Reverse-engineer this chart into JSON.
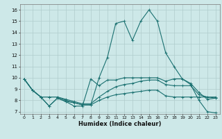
{
  "xlabel": "Humidex (Indice chaleur)",
  "xlim": [
    -0.5,
    23.5
  ],
  "ylim": [
    6.8,
    16.5
  ],
  "yticks": [
    7,
    8,
    9,
    10,
    11,
    12,
    13,
    14,
    15,
    16
  ],
  "xticks": [
    0,
    1,
    2,
    3,
    4,
    5,
    6,
    7,
    8,
    9,
    10,
    11,
    12,
    13,
    14,
    15,
    16,
    17,
    18,
    19,
    20,
    21,
    22,
    23
  ],
  "bg_color": "#cde8e8",
  "grid_color": "#b0cccc",
  "line_color": "#1a7070",
  "line1_y": [
    9.9,
    8.9,
    8.3,
    8.3,
    8.3,
    8.0,
    7.8,
    7.6,
    7.6,
    8.0,
    8.3,
    8.5,
    8.6,
    8.7,
    8.8,
    8.9,
    8.9,
    8.4,
    8.3,
    8.3,
    8.3,
    8.3,
    8.3,
    8.2
  ],
  "line2_y": [
    9.9,
    8.9,
    8.3,
    8.3,
    8.3,
    8.1,
    7.9,
    7.7,
    7.7,
    8.3,
    8.8,
    9.2,
    9.4,
    9.5,
    9.7,
    9.8,
    9.8,
    9.4,
    9.3,
    9.3,
    9.3,
    8.5,
    8.3,
    8.3
  ],
  "line3_y": [
    9.9,
    8.9,
    8.3,
    7.5,
    8.2,
    7.9,
    7.5,
    7.5,
    9.9,
    9.3,
    9.8,
    9.8,
    10.0,
    10.0,
    10.0,
    10.0,
    10.0,
    9.7,
    9.9,
    9.9,
    9.5,
    8.7,
    8.1,
    8.2
  ],
  "line4_y": [
    9.9,
    8.9,
    8.3,
    7.5,
    8.2,
    7.9,
    7.8,
    7.6,
    7.6,
    10.0,
    11.8,
    14.8,
    15.0,
    13.3,
    15.0,
    16.0,
    15.0,
    12.2,
    11.0,
    9.9,
    9.4,
    8.0,
    7.0,
    6.9
  ]
}
